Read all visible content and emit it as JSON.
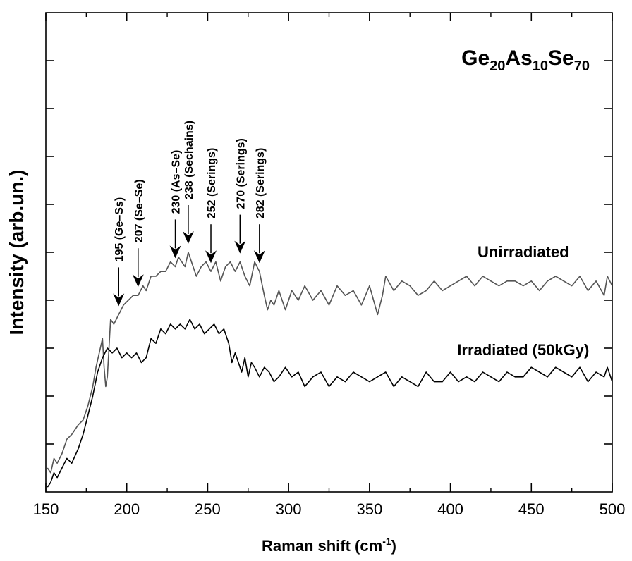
{
  "chart_data": {
    "type": "line",
    "title_base": "Ge",
    "title_parts": [
      {
        "text": "Ge",
        "sub": false
      },
      {
        "text": "20",
        "sub": true
      },
      {
        "text": "As",
        "sub": false
      },
      {
        "text": "10",
        "sub": true
      },
      {
        "text": "Se",
        "sub": false
      },
      {
        "text": "70",
        "sub": true
      }
    ],
    "xlabel_main": "Raman shift (cm",
    "xlabel_sup": "-1",
    "xlabel_close": ")",
    "ylabel": "Intensity (arb.un.)",
    "xlim": [
      150,
      500
    ],
    "ylim": [
      0,
      10
    ],
    "x_ticks": [
      150,
      200,
      250,
      300,
      350,
      400,
      450,
      500
    ],
    "y_ticks_unlabeled": [
      1,
      2,
      3,
      4,
      5,
      6,
      7,
      8,
      9
    ],
    "x_minor_ticks": [
      175,
      225,
      275,
      325,
      375,
      425,
      475
    ],
    "series": [
      {
        "name": "Unirradiated",
        "color": "#555555",
        "x": [
          151,
          153,
          155,
          157,
          160,
          163,
          166,
          170,
          173,
          176,
          179,
          181,
          183,
          185,
          186,
          187,
          188,
          189,
          190,
          192,
          195,
          198,
          201,
          204,
          207,
          210,
          212,
          215,
          218,
          221,
          224,
          227,
          230,
          232,
          234,
          236,
          238,
          240,
          243,
          246,
          249,
          252,
          255,
          258,
          261,
          264,
          267,
          270,
          273,
          276,
          279,
          282,
          285,
          287,
          289,
          291,
          294,
          298,
          302,
          306,
          310,
          315,
          320,
          325,
          330,
          335,
          340,
          345,
          350,
          355,
          358,
          360,
          365,
          370,
          375,
          380,
          385,
          390,
          395,
          400,
          405,
          410,
          415,
          420,
          425,
          430,
          435,
          440,
          445,
          450,
          455,
          460,
          465,
          470,
          475,
          480,
          485,
          490,
          495,
          497,
          500
        ],
        "y": [
          0.5,
          0.4,
          0.7,
          0.6,
          0.8,
          1.1,
          1.2,
          1.4,
          1.5,
          1.8,
          2.2,
          2.6,
          2.9,
          3.2,
          2.6,
          2.2,
          2.4,
          3.0,
          3.6,
          3.5,
          3.7,
          3.9,
          4.0,
          4.1,
          4.1,
          4.3,
          4.2,
          4.5,
          4.5,
          4.6,
          4.6,
          4.8,
          4.7,
          4.9,
          4.8,
          4.7,
          5.0,
          4.8,
          4.5,
          4.7,
          4.8,
          4.6,
          4.8,
          4.4,
          4.7,
          4.8,
          4.6,
          4.8,
          4.5,
          4.3,
          4.8,
          4.6,
          4.1,
          3.8,
          4.0,
          3.9,
          4.2,
          3.8,
          4.2,
          4.0,
          4.3,
          4.0,
          4.2,
          3.9,
          4.3,
          4.1,
          4.2,
          3.9,
          4.3,
          3.7,
          4.1,
          4.5,
          4.2,
          4.4,
          4.3,
          4.1,
          4.2,
          4.4,
          4.2,
          4.3,
          4.4,
          4.5,
          4.3,
          4.5,
          4.4,
          4.3,
          4.4,
          4.4,
          4.3,
          4.4,
          4.2,
          4.4,
          4.5,
          4.4,
          4.3,
          4.5,
          4.2,
          4.4,
          4.1,
          4.5,
          4.3
        ]
      },
      {
        "name": "Irradiated (50kGy)",
        "color": "#000000",
        "x": [
          151,
          153,
          155,
          157,
          160,
          163,
          166,
          170,
          173,
          176,
          179,
          182,
          185,
          188,
          191,
          194,
          197,
          200,
          203,
          206,
          209,
          212,
          215,
          218,
          221,
          224,
          227,
          230,
          233,
          236,
          239,
          242,
          245,
          248,
          251,
          254,
          257,
          260,
          263,
          265,
          267,
          269,
          271,
          273,
          275,
          277,
          279,
          282,
          285,
          288,
          291,
          294,
          298,
          302,
          306,
          310,
          315,
          320,
          325,
          330,
          335,
          340,
          345,
          350,
          355,
          360,
          365,
          370,
          375,
          380,
          385,
          390,
          395,
          400,
          405,
          410,
          415,
          420,
          425,
          430,
          435,
          440,
          445,
          450,
          455,
          460,
          465,
          470,
          475,
          480,
          485,
          490,
          495,
          497,
          500
        ],
        "y": [
          0.1,
          0.2,
          0.4,
          0.3,
          0.5,
          0.7,
          0.6,
          0.9,
          1.2,
          1.6,
          2.0,
          2.5,
          2.8,
          3.0,
          2.9,
          3.0,
          2.8,
          2.9,
          2.8,
          2.9,
          2.7,
          2.8,
          3.2,
          3.1,
          3.4,
          3.3,
          3.5,
          3.4,
          3.5,
          3.4,
          3.6,
          3.4,
          3.5,
          3.3,
          3.4,
          3.5,
          3.3,
          3.4,
          3.1,
          2.7,
          2.9,
          2.7,
          2.5,
          2.8,
          2.4,
          2.7,
          2.6,
          2.4,
          2.6,
          2.5,
          2.3,
          2.4,
          2.6,
          2.4,
          2.5,
          2.2,
          2.4,
          2.5,
          2.2,
          2.4,
          2.3,
          2.5,
          2.4,
          2.3,
          2.4,
          2.5,
          2.2,
          2.4,
          2.3,
          2.2,
          2.5,
          2.3,
          2.3,
          2.5,
          2.3,
          2.4,
          2.3,
          2.5,
          2.4,
          2.3,
          2.5,
          2.4,
          2.4,
          2.6,
          2.5,
          2.4,
          2.6,
          2.5,
          2.4,
          2.6,
          2.3,
          2.5,
          2.4,
          2.6,
          2.3
        ]
      }
    ],
    "series_labels": [
      {
        "text": "Unirradiated",
        "x": 445,
        "y": 4.9
      },
      {
        "text": "Irradiated (50kGy)",
        "x": 445,
        "y": 2.85
      }
    ],
    "annotations": [
      {
        "label": "195 (Ge–Ss)",
        "x": 195
      },
      {
        "label": "207 (Se–Se)",
        "x": 207
      },
      {
        "label": "230 (As–Se)",
        "x": 230
      },
      {
        "label": "238 (Sechains)",
        "x": 238
      },
      {
        "label": "252 (Serings)",
        "x": 252
      },
      {
        "label": "270 (Serings)",
        "x": 270
      },
      {
        "label": "282 (Serings)",
        "x": 282
      }
    ]
  }
}
